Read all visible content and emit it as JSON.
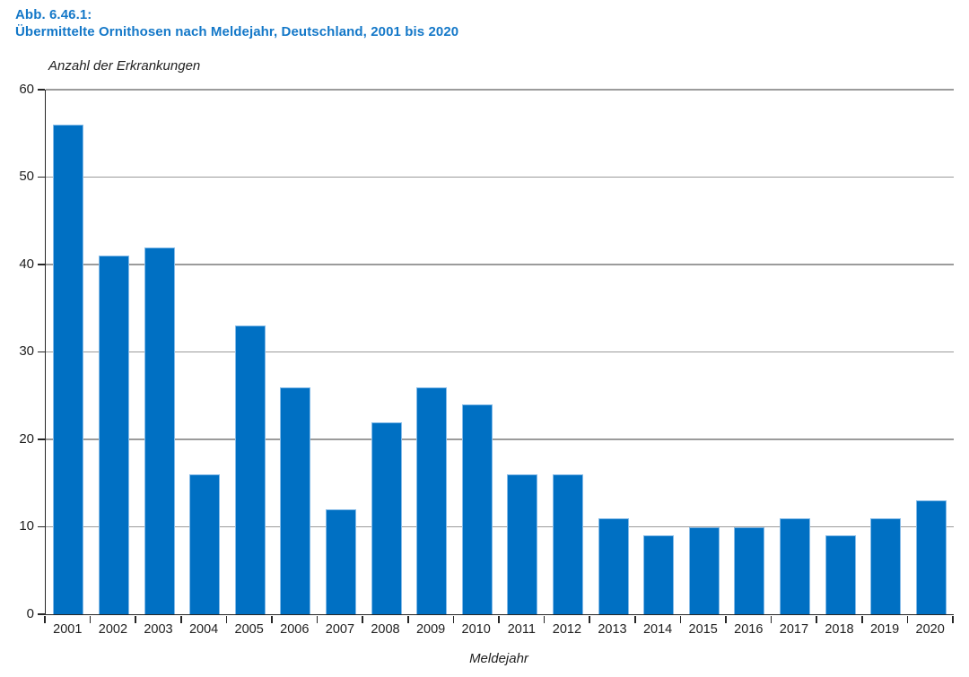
{
  "figure": {
    "label": "Abb. 6.46.1:",
    "title": "Übermittelte Ornithosen nach Meldejahr, Deutschland, 2001 bis 2020"
  },
  "chart_data": {
    "type": "bar",
    "title": "Übermittelte Ornithosen nach Meldejahr, Deutschland, 2001 bis 2020",
    "ylabel": "Anzahl der Erkrankungen",
    "xlabel": "Meldejahr",
    "categories": [
      "2001",
      "2002",
      "2003",
      "2004",
      "2005",
      "2006",
      "2007",
      "2008",
      "2009",
      "2010",
      "2011",
      "2012",
      "2013",
      "2014",
      "2015",
      "2016",
      "2017",
      "2018",
      "2019",
      "2020"
    ],
    "values": [
      56,
      41,
      42,
      16,
      33,
      26,
      12,
      22,
      26,
      24,
      16,
      16,
      11,
      9,
      10,
      10,
      11,
      9,
      11,
      13
    ],
    "ylim": [
      0,
      60
    ],
    "yticks": [
      0,
      10,
      20,
      30,
      40,
      50,
      60
    ],
    "grid": "horizontal",
    "legend": "none",
    "colors": {
      "bar_fill": "#0070c3",
      "bar_border": "#85bbe8",
      "caption_blue": "#1478c8",
      "gridline": "#9b9b9b",
      "axis": "#262626",
      "text": "#1f1f1f"
    }
  }
}
